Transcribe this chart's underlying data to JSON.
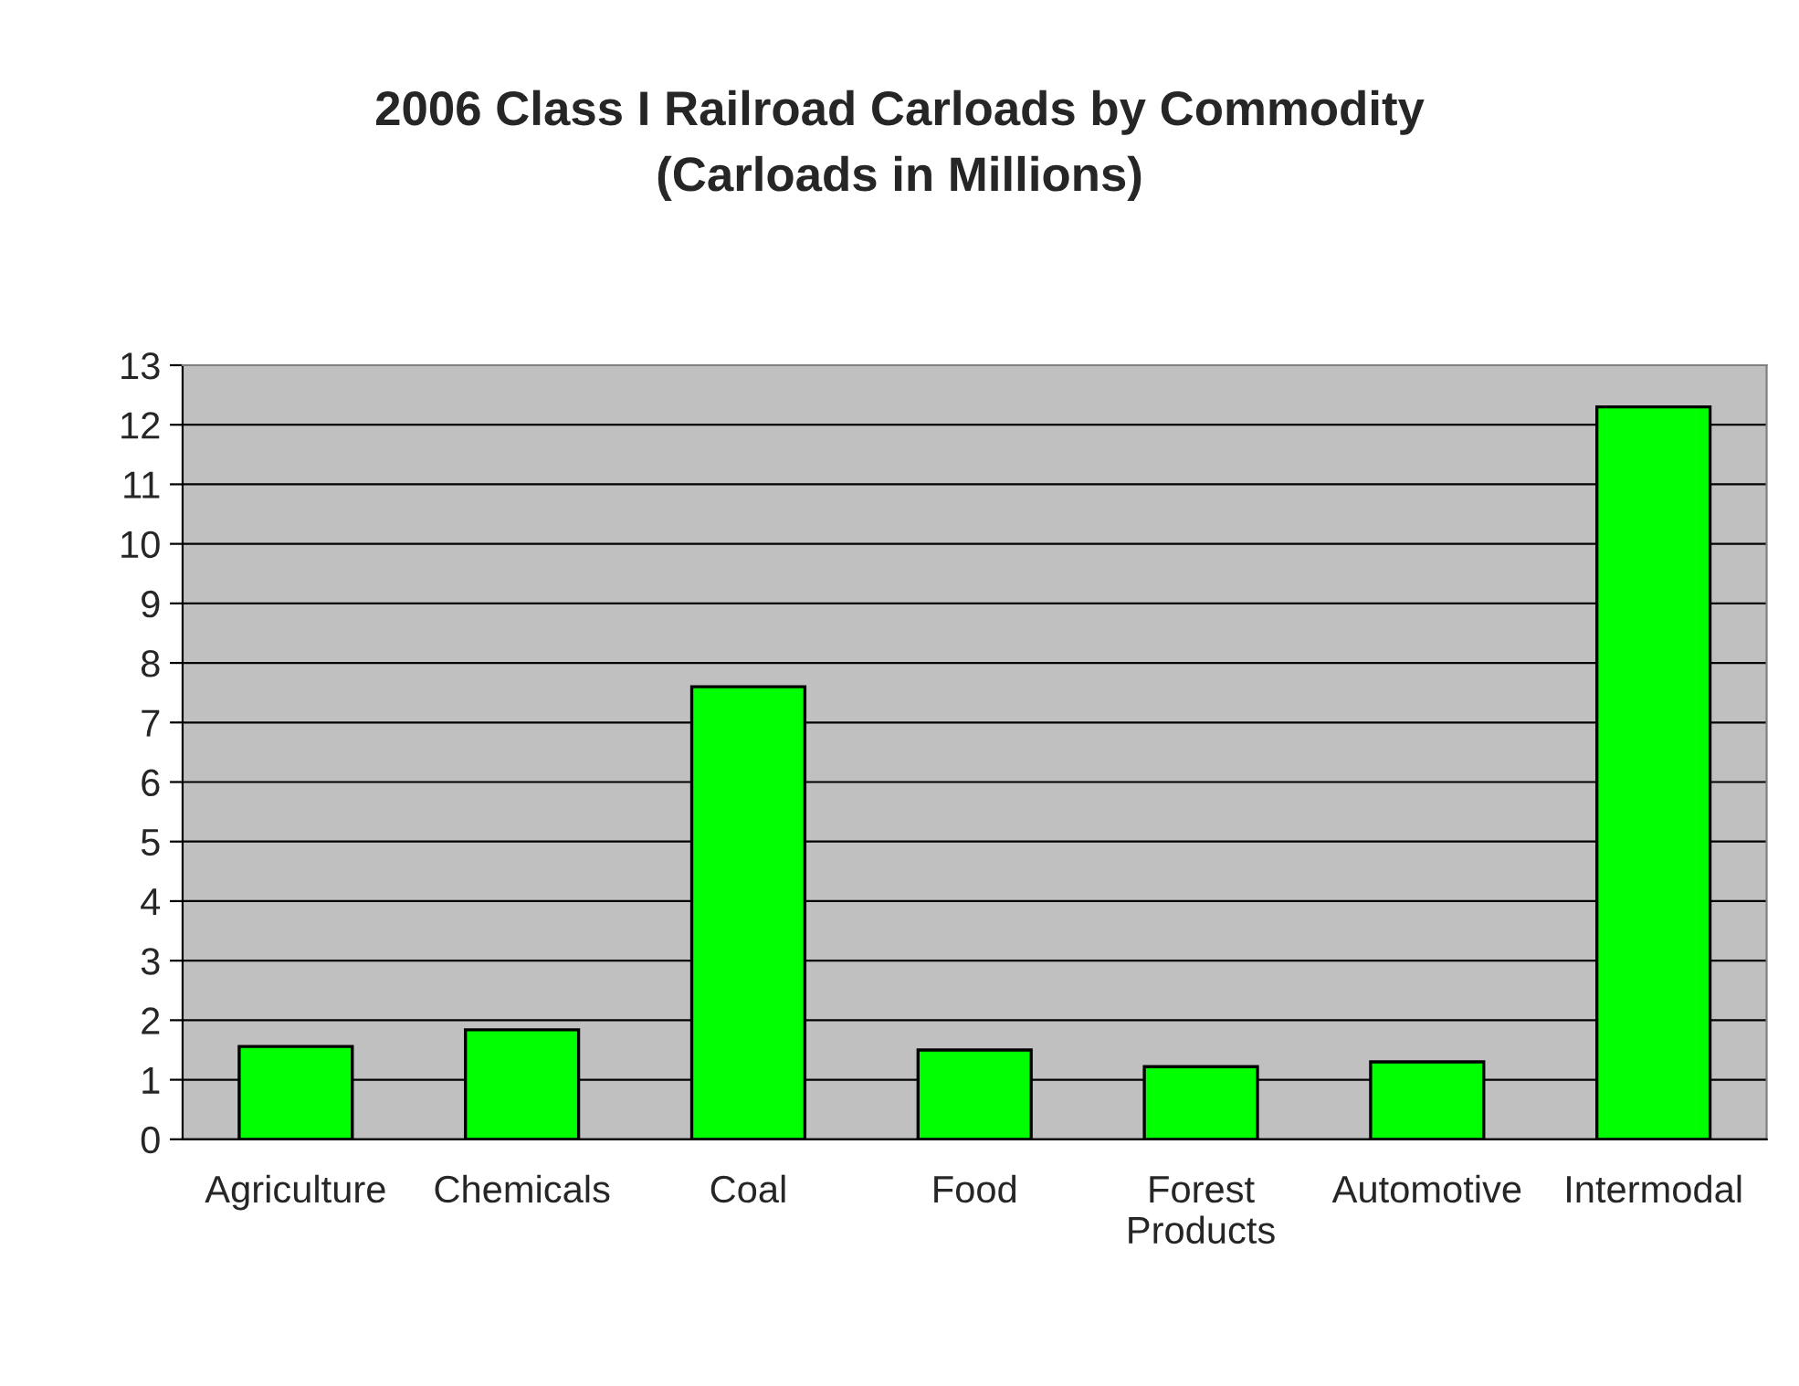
{
  "chart_data": {
    "type": "bar",
    "title": "2006 Class I Railroad Carloads by Commodity\n(Carloads in Millions)",
    "categories": [
      "Agriculture",
      "Chemicals",
      "Coal",
      "Food",
      "Forest\nProducts",
      "Automotive",
      "Intermodal"
    ],
    "values": [
      1.56,
      1.84,
      7.6,
      1.5,
      1.22,
      1.3,
      12.3
    ],
    "color": "#00ff00",
    "ylim": [
      0,
      13
    ],
    "yticks": [
      0,
      1,
      2,
      3,
      4,
      5,
      6,
      7,
      8,
      9,
      10,
      11,
      12,
      13
    ],
    "grid": "y"
  }
}
